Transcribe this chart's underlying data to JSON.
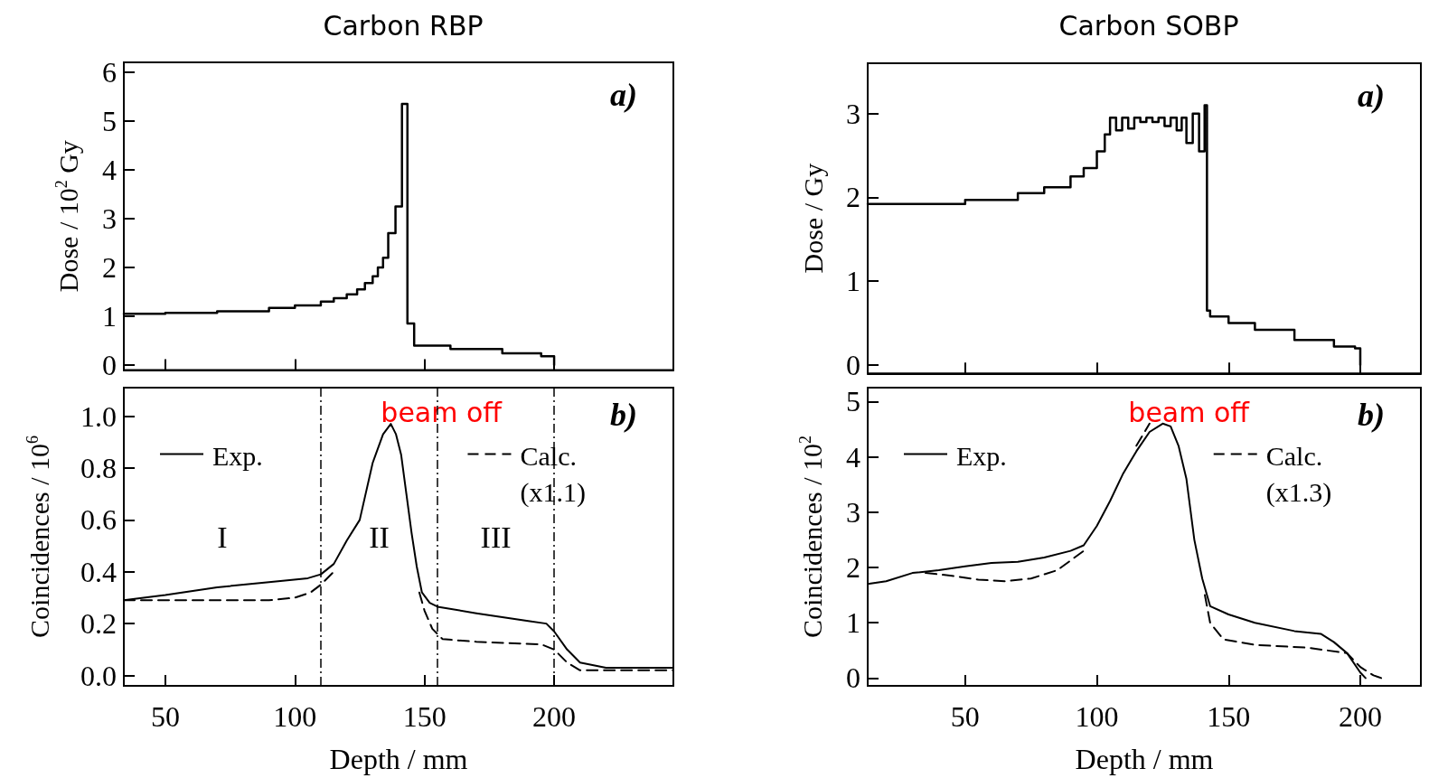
{
  "chart_data": [
    {
      "type": "step",
      "title": "Carbon RBP",
      "ylabel": "Dose / 10$^{2}$ Gy",
      "xlim": [
        34,
        246
      ],
      "ylim": [
        -0.1,
        6.2
      ],
      "xticks": [
        50,
        100,
        150,
        200
      ],
      "yticks": [
        0,
        1,
        2,
        3,
        4,
        5,
        6
      ],
      "tick_labels": "y",
      "grid": false,
      "marker": "none",
      "annotations": [
        "a)"
      ],
      "series": [
        {
          "color": "#000000",
          "line_style": "solid",
          "x": [
            34,
            50,
            70,
            90,
            100,
            110,
            115,
            120,
            124,
            127,
            130,
            132,
            134,
            136,
            138.8,
            141.3,
            143.4,
            146,
            160,
            180,
            195,
            200
          ],
          "values": [
            1.05,
            1.07,
            1.1,
            1.17,
            1.22,
            1.3,
            1.37,
            1.45,
            1.55,
            1.68,
            1.82,
            2.0,
            2.2,
            2.7,
            3.25,
            5.35,
            0.85,
            0.4,
            0.33,
            0.24,
            0.18,
            0
          ]
        }
      ]
    },
    {
      "type": "line",
      "xlabel": "Depth / mm",
      "ylabel": "Coincidences / 10$^{6}$",
      "xlim": [
        34,
        246
      ],
      "ylim": [
        -0.04,
        1.11
      ],
      "xticks": [
        50,
        100,
        150,
        200
      ],
      "yticks": [
        {
          "value": 0,
          "label": "0.0"
        },
        0.2,
        0.4,
        0.6,
        0.8,
        {
          "value": 1,
          "label": "1.0"
        }
      ],
      "grid": false,
      "marker": "none",
      "legend": "top",
      "annotations": [
        "beam off",
        "b)",
        "I",
        "II",
        "III"
      ],
      "ref_lines": [
        {
          "axis": "x",
          "value": 110,
          "line_style": "dashed"
        },
        {
          "axis": "x",
          "value": 155,
          "line_style": "dashed"
        },
        {
          "axis": "x",
          "value": 200,
          "line_style": "dashed"
        }
      ],
      "series": [
        {
          "name": "Exp.",
          "color": "#000000",
          "line_style": "solid",
          "x": [
            34,
            50,
            70,
            90,
            105,
            110,
            115,
            120,
            125,
            130,
            134,
            137,
            139,
            141,
            143,
            145,
            147,
            149,
            152,
            155,
            170,
            190,
            197,
            200,
            205,
            210,
            220,
            246
          ],
          "values": [
            0.29,
            0.31,
            0.34,
            0.36,
            0.375,
            0.39,
            0.43,
            0.52,
            0.6,
            0.82,
            0.93,
            0.97,
            0.93,
            0.85,
            0.7,
            0.55,
            0.42,
            0.32,
            0.28,
            0.265,
            0.24,
            0.21,
            0.2,
            0.17,
            0.1,
            0.05,
            0.03,
            0.03
          ]
        },
        {
          "name": "Calc.\n(x1.1)",
          "color": "#000000",
          "line_style": "dashed",
          "x": [
            34,
            50,
            70,
            90,
            100,
            106,
            110,
            115,
            130,
            148,
            150,
            153,
            157,
            170,
            195,
            200,
            205,
            210,
            246
          ],
          "values": [
            0.29,
            0.29,
            0.29,
            0.29,
            0.3,
            0.32,
            0.35,
            0.4,
            null,
            0.32,
            0.25,
            0.18,
            0.14,
            0.13,
            0.12,
            0.1,
            0.05,
            0.02,
            0.02
          ]
        }
      ]
    },
    {
      "type": "step",
      "title": "Carbon SOBP",
      "ylabel": "Dose / Gy",
      "xlim": [
        13,
        223
      ],
      "ylim": [
        -0.1,
        3.6
      ],
      "xticks": [
        50,
        100,
        150,
        200
      ],
      "yticks": [
        0,
        1,
        2,
        3
      ],
      "tick_labels": "y",
      "grid": false,
      "marker": "none",
      "annotations": [
        "a)"
      ],
      "series": [
        {
          "color": "#000000",
          "line_style": "solid",
          "x": [
            13,
            50,
            70,
            80,
            90,
            95,
            100,
            103,
            105,
            107.3,
            109.6,
            111.9,
            114.2,
            116.5,
            118.8,
            121.1,
            123.4,
            125.7,
            128,
            130.3,
            132.2,
            134,
            136.4,
            138.8,
            140.9,
            141.8,
            143,
            150,
            160,
            175,
            190,
            198,
            200
          ],
          "values": [
            1.92,
            1.97,
            2.05,
            2.12,
            2.25,
            2.35,
            2.55,
            2.75,
            2.95,
            2.8,
            2.95,
            2.82,
            2.95,
            2.9,
            2.95,
            2.9,
            2.95,
            2.85,
            2.95,
            2.8,
            2.95,
            2.65,
            3.0,
            2.55,
            3.1,
            0.65,
            0.58,
            0.5,
            0.42,
            0.3,
            0.22,
            0.2,
            0
          ]
        }
      ]
    },
    {
      "type": "line",
      "xlabel": "Depth / mm",
      "ylabel": "Coincidences / 10$^{2}$",
      "xlim": [
        13,
        223
      ],
      "ylim": [
        -0.14,
        5.25
      ],
      "xticks": [
        50,
        100,
        150,
        200
      ],
      "yticks": [
        0,
        1,
        2,
        3,
        4,
        5
      ],
      "grid": false,
      "marker": "none",
      "legend": "top",
      "annotations": [
        "beam off",
        "b)"
      ],
      "series": [
        {
          "name": "Exp.",
          "color": "#000000",
          "line_style": "solid",
          "x": [
            13,
            20,
            30,
            40,
            50,
            60,
            70,
            80,
            90,
            95,
            100,
            105,
            110,
            115,
            120,
            125,
            128,
            131,
            134,
            137,
            140,
            143,
            150,
            160,
            175,
            185,
            190,
            195,
            200,
            202
          ],
          "values": [
            1.7,
            1.75,
            1.9,
            1.95,
            2.02,
            2.08,
            2.1,
            2.18,
            2.3,
            2.4,
            2.75,
            3.2,
            3.7,
            4.1,
            4.45,
            4.6,
            4.55,
            4.2,
            3.6,
            2.5,
            1.8,
            1.3,
            1.15,
            1.0,
            0.85,
            0.8,
            0.65,
            0.45,
            0.1,
            0
          ]
        },
        {
          "name": "Calc.\n(x1.3)",
          "color": "#000000",
          "line_style": "dashed",
          "x": [
            35,
            45,
            55,
            65,
            75,
            85,
            95,
            105,
            115,
            120,
            130,
            141,
            143,
            148,
            160,
            180,
            195,
            200,
            205,
            208
          ],
          "values": [
            1.9,
            1.85,
            1.78,
            1.75,
            1.8,
            1.95,
            2.3,
            null,
            4.2,
            4.6,
            null,
            1.5,
            1.0,
            0.7,
            0.6,
            0.55,
            0.45,
            0.2,
            0.05,
            0
          ]
        }
      ]
    }
  ]
}
